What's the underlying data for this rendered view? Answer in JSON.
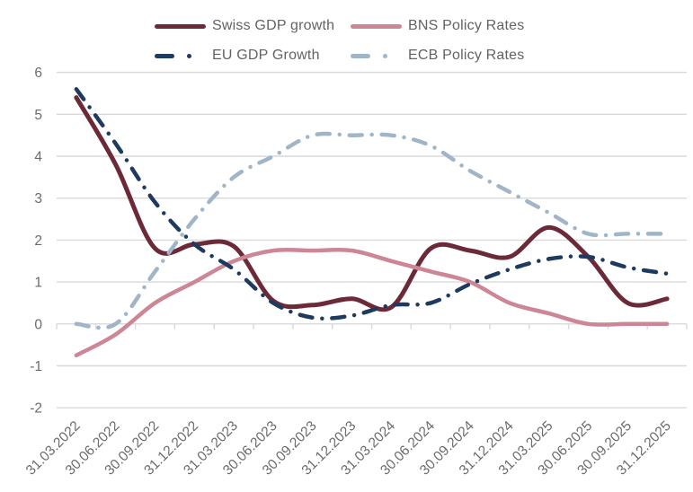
{
  "chart_data": {
    "type": "line",
    "title": "",
    "xlabel": "",
    "ylabel": "",
    "ylim": [
      -2,
      6
    ],
    "yticks": [
      6,
      5,
      4,
      3,
      2,
      1,
      0,
      -1,
      -2
    ],
    "grid": "horizontal",
    "legend_position": "top",
    "line_style_note": "smoothed lines; GDP series solid/dashdot per series style",
    "categories": [
      "31.03.2022",
      "30.06.2022",
      "30.09.2022",
      "31.12.2022",
      "31.03.2023",
      "30.06.2023",
      "30.09.2023",
      "31.12.2023",
      "31.03.2024",
      "30.06.2024",
      "30.09.2024",
      "31.12.2024",
      "31.03.2025",
      "30.06.2025",
      "30.09.2025",
      "31.12.2025"
    ],
    "series": [
      {
        "name": "Swiss GDP growth",
        "style": "solid",
        "color": "#6C2A39",
        "width": 5,
        "values": [
          5.4,
          3.8,
          1.8,
          1.9,
          1.85,
          0.55,
          0.45,
          0.6,
          0.4,
          1.8,
          1.75,
          1.6,
          2.3,
          1.6,
          0.5,
          0.6
        ]
      },
      {
        "name": "BNS Policy Rates",
        "style": "solid",
        "color": "#CD8695",
        "width": 4.5,
        "values": [
          -0.75,
          -0.25,
          0.5,
          1.0,
          1.5,
          1.75,
          1.75,
          1.75,
          1.5,
          1.25,
          1.0,
          0.5,
          0.25,
          0,
          0,
          0
        ]
      },
      {
        "name": "EU GDP Growth",
        "style": "dashdot",
        "color": "#1F3A5F",
        "width": 4.5,
        "values": [
          5.6,
          4.3,
          2.9,
          1.9,
          1.3,
          0.5,
          0.15,
          0.2,
          0.45,
          0.5,
          0.95,
          1.3,
          1.55,
          1.6,
          1.35,
          1.2
        ]
      },
      {
        "name": "ECB Policy Rates",
        "style": "dashdot",
        "color": "#A0B6C8",
        "width": 4.5,
        "values": [
          0,
          0,
          1.25,
          2.5,
          3.5,
          4.0,
          4.5,
          4.5,
          4.5,
          4.25,
          3.65,
          3.15,
          2.65,
          2.15,
          2.15,
          2.15
        ]
      }
    ],
    "colors": {
      "gridline": "#d9d9d9",
      "axis_text": "#6b6b6b"
    }
  }
}
